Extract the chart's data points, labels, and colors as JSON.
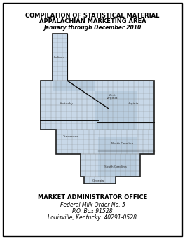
{
  "title_line1": "COMPILATION OF STATISTICAL MATERIAL",
  "title_line2": "APPALACHIAN MARKETING AREA",
  "title_line3": "January through December 2010",
  "footer_line1": "MARKET ADMINISTRATOR OFFICE",
  "footer_line2": "Federal Milk Order No. 5",
  "footer_line3": "P.O. Box 91528",
  "footer_line4": "Louisville, Kentucky  40291-0528",
  "bg_color": "#ffffff",
  "border_color": "#000000",
  "text_color": "#000000",
  "map_fill": "#c8d8e8",
  "map_fill_dark": "#aec4d8",
  "map_outline": "#222222",
  "county_line": "#888888",
  "state_line": "#111111"
}
